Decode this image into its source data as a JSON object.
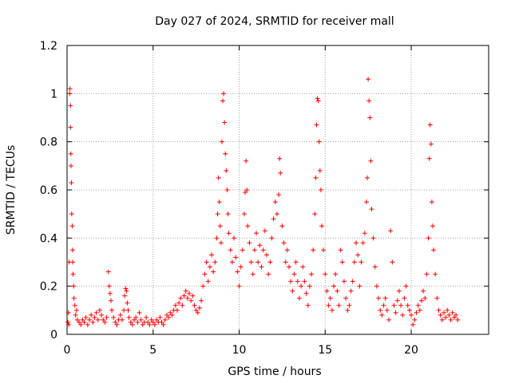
{
  "chart_data": {
    "type": "scatter",
    "title": "Day 027 of 2024, SRMTID for receiver mall",
    "xlabel": "GPS time / hours",
    "ylabel": "SRMTID / TECUs",
    "xlim": [
      0,
      24.5
    ],
    "ylim": [
      0,
      1.2
    ],
    "xticks": [
      0,
      5,
      10,
      15,
      20
    ],
    "xtick_labels": [
      "0",
      "5",
      "10",
      "15",
      "20"
    ],
    "yticks": [
      0,
      0.2,
      0.4,
      0.6,
      0.8,
      1,
      1.2
    ],
    "ytick_labels": [
      "0",
      "0.2",
      "0.4",
      "0.6",
      "0.8",
      "1",
      "1.2"
    ],
    "grid": true,
    "marker": "plus",
    "marker_color": "#ff0000",
    "series": [
      {
        "name": "SRMTID",
        "points": [
          [
            0.05,
            0.05
          ],
          [
            0.08,
            0.09
          ],
          [
            0.1,
            0.04
          ],
          [
            0.12,
            0.3
          ],
          [
            0.15,
            1.0
          ],
          [
            0.17,
            1.02
          ],
          [
            0.2,
            0.95
          ],
          [
            0.2,
            0.86
          ],
          [
            0.22,
            0.75
          ],
          [
            0.23,
            0.7
          ],
          [
            0.25,
            0.63
          ],
          [
            0.27,
            0.5
          ],
          [
            0.3,
            0.45
          ],
          [
            0.32,
            0.35
          ],
          [
            0.33,
            0.3
          ],
          [
            0.35,
            0.25
          ],
          [
            0.38,
            0.2
          ],
          [
            0.4,
            0.15
          ],
          [
            0.45,
            0.12
          ],
          [
            0.5,
            0.08
          ],
          [
            0.55,
            0.1
          ],
          [
            0.6,
            0.06
          ],
          [
            0.7,
            0.05
          ],
          [
            0.8,
            0.04
          ],
          [
            0.9,
            0.06
          ],
          [
            1.0,
            0.05
          ],
          [
            1.1,
            0.07
          ],
          [
            1.2,
            0.04
          ],
          [
            1.3,
            0.06
          ],
          [
            1.4,
            0.08
          ],
          [
            1.5,
            0.05
          ],
          [
            1.6,
            0.07
          ],
          [
            1.7,
            0.09
          ],
          [
            1.8,
            0.06
          ],
          [
            1.9,
            0.1
          ],
          [
            2.0,
            0.08
          ],
          [
            2.1,
            0.06
          ],
          [
            2.2,
            0.05
          ],
          [
            2.3,
            0.07
          ],
          [
            2.4,
            0.26
          ],
          [
            2.45,
            0.2
          ],
          [
            2.5,
            0.17
          ],
          [
            2.55,
            0.14
          ],
          [
            2.6,
            0.1
          ],
          [
            2.7,
            0.07
          ],
          [
            2.8,
            0.05
          ],
          [
            2.9,
            0.04
          ],
          [
            3.0,
            0.06
          ],
          [
            3.1,
            0.08
          ],
          [
            3.2,
            0.06
          ],
          [
            3.3,
            0.1
          ],
          [
            3.35,
            0.16
          ],
          [
            3.4,
            0.19
          ],
          [
            3.45,
            0.18
          ],
          [
            3.5,
            0.13
          ],
          [
            3.55,
            0.1
          ],
          [
            3.6,
            0.07
          ],
          [
            3.7,
            0.05
          ],
          [
            3.8,
            0.04
          ],
          [
            3.9,
            0.06
          ],
          [
            4.0,
            0.07
          ],
          [
            4.1,
            0.05
          ],
          [
            4.2,
            0.09
          ],
          [
            4.3,
            0.06
          ],
          [
            4.4,
            0.04
          ],
          [
            4.5,
            0.05
          ],
          [
            4.6,
            0.07
          ],
          [
            4.7,
            0.05
          ],
          [
            4.8,
            0.04
          ],
          [
            4.9,
            0.06
          ],
          [
            5.0,
            0.05
          ],
          [
            5.1,
            0.04
          ],
          [
            5.2,
            0.06
          ],
          [
            5.3,
            0.05
          ],
          [
            5.4,
            0.07
          ],
          [
            5.5,
            0.05
          ],
          [
            5.6,
            0.04
          ],
          [
            5.7,
            0.06
          ],
          [
            5.8,
            0.08
          ],
          [
            5.9,
            0.07
          ],
          [
            6.0,
            0.09
          ],
          [
            6.1,
            0.08
          ],
          [
            6.2,
            0.1
          ],
          [
            6.3,
            0.12
          ],
          [
            6.4,
            0.1
          ],
          [
            6.5,
            0.13
          ],
          [
            6.6,
            0.15
          ],
          [
            6.7,
            0.12
          ],
          [
            6.8,
            0.16
          ],
          [
            6.9,
            0.18
          ],
          [
            7.0,
            0.15
          ],
          [
            7.1,
            0.17
          ],
          [
            7.2,
            0.14
          ],
          [
            7.3,
            0.16
          ],
          [
            7.4,
            0.12
          ],
          [
            7.5,
            0.1
          ],
          [
            7.6,
            0.09
          ],
          [
            7.7,
            0.11
          ],
          [
            7.8,
            0.14
          ],
          [
            7.9,
            0.2
          ],
          [
            8.0,
            0.25
          ],
          [
            8.1,
            0.3
          ],
          [
            8.2,
            0.22
          ],
          [
            8.3,
            0.28
          ],
          [
            8.4,
            0.33
          ],
          [
            8.5,
            0.26
          ],
          [
            8.6,
            0.3
          ],
          [
            8.7,
            0.4
          ],
          [
            8.75,
            0.5
          ],
          [
            8.8,
            0.65
          ],
          [
            8.85,
            0.55
          ],
          [
            8.9,
            0.45
          ],
          [
            8.95,
            0.38
          ],
          [
            9.0,
            0.8
          ],
          [
            9.05,
            0.97
          ],
          [
            9.1,
            1.0
          ],
          [
            9.15,
            0.88
          ],
          [
            9.2,
            0.75
          ],
          [
            9.25,
            0.68
          ],
          [
            9.3,
            0.6
          ],
          [
            9.35,
            0.5
          ],
          [
            9.4,
            0.42
          ],
          [
            9.5,
            0.35
          ],
          [
            9.6,
            0.3
          ],
          [
            9.7,
            0.4
          ],
          [
            9.8,
            0.32
          ],
          [
            9.9,
            0.26
          ],
          [
            10.0,
            0.2
          ],
          [
            10.1,
            0.28
          ],
          [
            10.2,
            0.35
          ],
          [
            10.3,
            0.5
          ],
          [
            10.35,
            0.59
          ],
          [
            10.4,
            0.72
          ],
          [
            10.45,
            0.6
          ],
          [
            10.5,
            0.45
          ],
          [
            10.6,
            0.38
          ],
          [
            10.7,
            0.3
          ],
          [
            10.8,
            0.25
          ],
          [
            10.9,
            0.35
          ],
          [
            11.0,
            0.42
          ],
          [
            11.1,
            0.3
          ],
          [
            11.2,
            0.37
          ],
          [
            11.3,
            0.28
          ],
          [
            11.4,
            0.35
          ],
          [
            11.5,
            0.43
          ],
          [
            11.6,
            0.33
          ],
          [
            11.7,
            0.25
          ],
          [
            11.8,
            0.3
          ],
          [
            11.9,
            0.4
          ],
          [
            12.0,
            0.48
          ],
          [
            12.1,
            0.55
          ],
          [
            12.2,
            0.5
          ],
          [
            12.3,
            0.58
          ],
          [
            12.35,
            0.73
          ],
          [
            12.4,
            0.67
          ],
          [
            12.5,
            0.45
          ],
          [
            12.6,
            0.38
          ],
          [
            12.7,
            0.3
          ],
          [
            12.8,
            0.35
          ],
          [
            12.9,
            0.28
          ],
          [
            13.0,
            0.22
          ],
          [
            13.1,
            0.18
          ],
          [
            13.2,
            0.25
          ],
          [
            13.3,
            0.3
          ],
          [
            13.4,
            0.22
          ],
          [
            13.5,
            0.15
          ],
          [
            13.6,
            0.2
          ],
          [
            13.7,
            0.28
          ],
          [
            13.8,
            0.22
          ],
          [
            13.9,
            0.17
          ],
          [
            14.0,
            0.12
          ],
          [
            14.1,
            0.2
          ],
          [
            14.2,
            0.25
          ],
          [
            14.3,
            0.35
          ],
          [
            14.4,
            0.5
          ],
          [
            14.45,
            0.65
          ],
          [
            14.5,
            0.87
          ],
          [
            14.55,
            0.98
          ],
          [
            14.6,
            0.97
          ],
          [
            14.65,
            0.8
          ],
          [
            14.7,
            0.68
          ],
          [
            14.75,
            0.6
          ],
          [
            14.8,
            0.45
          ],
          [
            14.9,
            0.35
          ],
          [
            15.0,
            0.25
          ],
          [
            15.1,
            0.18
          ],
          [
            15.2,
            0.12
          ],
          [
            15.3,
            0.15
          ],
          [
            15.4,
            0.1
          ],
          [
            15.5,
            0.2
          ],
          [
            15.6,
            0.25
          ],
          [
            15.7,
            0.18
          ],
          [
            15.8,
            0.12
          ],
          [
            15.9,
            0.35
          ],
          [
            16.0,
            0.3
          ],
          [
            16.1,
            0.22
          ],
          [
            16.2,
            0.15
          ],
          [
            16.3,
            0.1
          ],
          [
            16.4,
            0.12
          ],
          [
            16.5,
            0.18
          ],
          [
            16.6,
            0.22
          ],
          [
            16.7,
            0.3
          ],
          [
            16.8,
            0.38
          ],
          [
            16.9,
            0.33
          ],
          [
            17.0,
            0.2
          ],
          [
            17.1,
            0.3
          ],
          [
            17.2,
            0.38
          ],
          [
            17.3,
            0.42
          ],
          [
            17.4,
            0.55
          ],
          [
            17.45,
            0.65
          ],
          [
            17.5,
            1.06
          ],
          [
            17.55,
            0.97
          ],
          [
            17.6,
            0.9
          ],
          [
            17.65,
            0.72
          ],
          [
            17.7,
            0.52
          ],
          [
            17.8,
            0.4
          ],
          [
            17.9,
            0.28
          ],
          [
            18.0,
            0.2
          ],
          [
            18.1,
            0.15
          ],
          [
            18.2,
            0.1
          ],
          [
            18.3,
            0.08
          ],
          [
            18.4,
            0.12
          ],
          [
            18.5,
            0.15
          ],
          [
            18.6,
            0.1
          ],
          [
            18.7,
            0.06
          ],
          [
            18.8,
            0.43
          ],
          [
            18.9,
            0.3
          ],
          [
            19.0,
            0.12
          ],
          [
            19.1,
            0.09
          ],
          [
            19.2,
            0.14
          ],
          [
            19.3,
            0.18
          ],
          [
            19.4,
            0.12
          ],
          [
            19.5,
            0.08
          ],
          [
            19.6,
            0.15
          ],
          [
            19.7,
            0.2
          ],
          [
            19.8,
            0.12
          ],
          [
            19.9,
            0.1
          ],
          [
            20.0,
            0.08
          ],
          [
            20.1,
            0.04
          ],
          [
            20.2,
            0.06
          ],
          [
            20.3,
            0.09
          ],
          [
            20.4,
            0.12
          ],
          [
            20.5,
            0.1
          ],
          [
            20.6,
            0.14
          ],
          [
            20.7,
            0.18
          ],
          [
            20.8,
            0.15
          ],
          [
            20.9,
            0.25
          ],
          [
            21.0,
            0.4
          ],
          [
            21.05,
            0.73
          ],
          [
            21.1,
            0.87
          ],
          [
            21.15,
            0.79
          ],
          [
            21.2,
            0.55
          ],
          [
            21.25,
            0.45
          ],
          [
            21.3,
            0.35
          ],
          [
            21.4,
            0.25
          ],
          [
            21.5,
            0.15
          ],
          [
            21.6,
            0.1
          ],
          [
            21.7,
            0.08
          ],
          [
            21.8,
            0.06
          ],
          [
            21.9,
            0.09
          ],
          [
            22.0,
            0.07
          ],
          [
            22.1,
            0.1
          ],
          [
            22.2,
            0.08
          ],
          [
            22.3,
            0.06
          ],
          [
            22.4,
            0.09
          ],
          [
            22.5,
            0.07
          ],
          [
            22.6,
            0.08
          ],
          [
            22.7,
            0.06
          ]
        ]
      }
    ]
  }
}
